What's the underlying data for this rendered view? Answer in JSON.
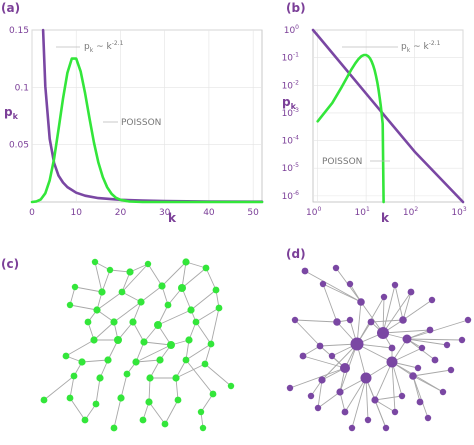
{
  "colors": {
    "poisson": "#33e63a",
    "powerlaw": "#7a47a3",
    "accent": "#7b3f98",
    "annotation": "#777777",
    "frame": "#bbbbbb",
    "edge": "#a8a8a8"
  },
  "panel_labels": {
    "a": "(a)",
    "b": "(b)",
    "c": "(c)",
    "d": "(d)"
  },
  "chart_data": [
    {
      "panel": "a",
      "type": "line",
      "xlabel": "k",
      "ylabel_main": "p",
      "ylabel_sub": "k",
      "xlim": [
        0,
        52
      ],
      "ylim": [
        0,
        0.15
      ],
      "xticks": [
        0,
        10,
        20,
        30,
        40,
        50
      ],
      "xtick_labels": [
        "0",
        "10",
        "20",
        "30",
        "40",
        "50"
      ],
      "yticks": [
        0.15,
        0.1,
        0.05
      ],
      "ytick_labels": [
        "0.15",
        "0.1",
        "0.05"
      ],
      "scale": "linear",
      "annotations": [
        {
          "text": "p",
          "sub": "k",
          "rest": " ~ k",
          "sup": "-2.1",
          "series": "power-law"
        },
        {
          "text": "POISSON",
          "series": "poisson"
        }
      ],
      "series": [
        {
          "id": "power-law",
          "color": "#7a47a3",
          "x": [
            2.5,
            3,
            4,
            5,
            6,
            7,
            8,
            10,
            12,
            15,
            20,
            25,
            30,
            40,
            50,
            52
          ],
          "y": [
            0.15,
            0.101,
            0.055,
            0.034,
            0.023,
            0.017,
            0.013,
            0.0081,
            0.0055,
            0.0034,
            0.0019,
            0.0012,
            0.0008,
            0.00045,
            0.0003,
            0.00027
          ]
        },
        {
          "id": "poisson",
          "color": "#33e63a",
          "x": [
            0,
            1,
            2,
            3,
            4,
            5,
            6,
            7,
            8,
            9,
            10,
            11,
            12,
            13,
            14,
            15,
            16,
            17,
            18,
            19,
            20,
            22,
            25,
            30,
            40,
            52
          ],
          "y": [
            0.0,
            0.0005,
            0.0023,
            0.0076,
            0.0189,
            0.0378,
            0.0631,
            0.0901,
            0.1126,
            0.1251,
            0.1251,
            0.1137,
            0.0948,
            0.0729,
            0.0521,
            0.0347,
            0.0217,
            0.0128,
            0.0071,
            0.0037,
            0.0019,
            0.0004,
            0.0,
            0.0,
            0.0,
            0.0
          ]
        }
      ]
    },
    {
      "panel": "b",
      "type": "line",
      "xlabel": "k",
      "ylabel_main": "p",
      "ylabel_sub": "k",
      "xlim": [
        0.8,
        1000
      ],
      "ylim": [
        6e-07,
        1
      ],
      "xticks": [
        1,
        10,
        100,
        1000
      ],
      "xtick_labels": [
        {
          "base": "10",
          "exp": "0"
        },
        {
          "base": "10",
          "exp": "1"
        },
        {
          "base": "10",
          "exp": "2"
        },
        {
          "base": "10",
          "exp": "3"
        }
      ],
      "yticks": [
        1,
        0.1,
        0.01,
        0.001,
        0.0001,
        1e-05,
        1e-06
      ],
      "ytick_labels": [
        {
          "base": "10",
          "exp": "0"
        },
        {
          "base": "10",
          "exp": "-1"
        },
        {
          "base": "10",
          "exp": "-2"
        },
        {
          "base": "10",
          "exp": "-3"
        },
        {
          "base": "10",
          "exp": "-4"
        },
        {
          "base": "10",
          "exp": "-5"
        },
        {
          "base": "10",
          "exp": "-6"
        }
      ],
      "scale": "log-log",
      "annotations": [
        {
          "text": "p",
          "sub": "k",
          "rest": " ~ k",
          "sup": "-2.1",
          "series": "power-law"
        },
        {
          "text": "POISSON",
          "series": "poisson"
        }
      ],
      "series": [
        {
          "id": "power-law",
          "color": "#7a47a3",
          "x": [
            0.8,
            1,
            10,
            100,
            1000
          ],
          "y": [
            1.0,
            0.63,
            0.005,
            4e-05,
            5e-07
          ]
        },
        {
          "id": "poisson",
          "color": "#33e63a",
          "x": [
            1,
            2,
            3,
            4,
            5,
            6,
            7,
            8,
            9,
            10,
            11,
            12,
            13,
            14,
            15,
            16,
            17,
            18,
            19,
            20,
            21,
            22,
            23
          ],
          "y": [
            0.0005,
            0.0023,
            0.0076,
            0.0189,
            0.0378,
            0.0631,
            0.0901,
            0.1126,
            0.1251,
            0.1251,
            0.1137,
            0.0948,
            0.0729,
            0.0521,
            0.0347,
            0.0217,
            0.0128,
            0.0071,
            0.0037,
            0.0019,
            0.0009,
            0.0004,
            5e-07
          ]
        }
      ]
    }
  ]
}
